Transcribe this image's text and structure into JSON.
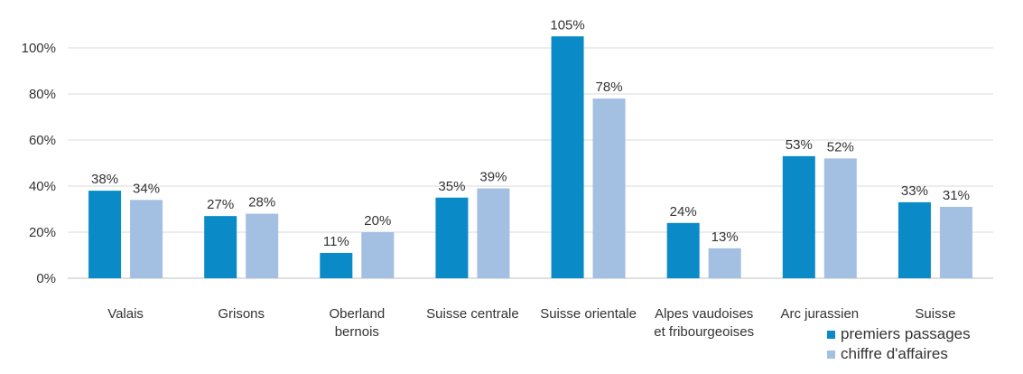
{
  "chart_data": {
    "type": "bar",
    "categories": [
      [
        "Valais"
      ],
      [
        "Grisons"
      ],
      [
        "Oberland",
        "bernois"
      ],
      [
        "Suisse centrale"
      ],
      [
        "Suisse orientale"
      ],
      [
        "Alpes vaudoises",
        "et fribourgeoises"
      ],
      [
        "Arc jurassien"
      ],
      [
        "Suisse"
      ]
    ],
    "series": [
      {
        "name": "premiers passages",
        "color": "#0a8ac6",
        "values": [
          38,
          27,
          11,
          35,
          105,
          24,
          53,
          33
        ],
        "labels": [
          "38%",
          "27%",
          "11%",
          "35%",
          "105%",
          "24%",
          "53%",
          "33%"
        ]
      },
      {
        "name": "chiffre d'affaires",
        "color": "#a3bfe2",
        "values": [
          34,
          28,
          20,
          39,
          78,
          13,
          52,
          31
        ],
        "labels": [
          "34%",
          "28%",
          "20%",
          "39%",
          "78%",
          "13%",
          "52%",
          "31%"
        ]
      }
    ],
    "ylim": [
      0,
      100
    ],
    "yticks": [
      0,
      20,
      40,
      60,
      80,
      100
    ],
    "ytick_labels": [
      "0%",
      "20%",
      "40%",
      "60%",
      "80%",
      "100%"
    ],
    "grid": true,
    "legend_position": "bottom-right",
    "title": "",
    "xlabel": "",
    "ylabel": ""
  }
}
